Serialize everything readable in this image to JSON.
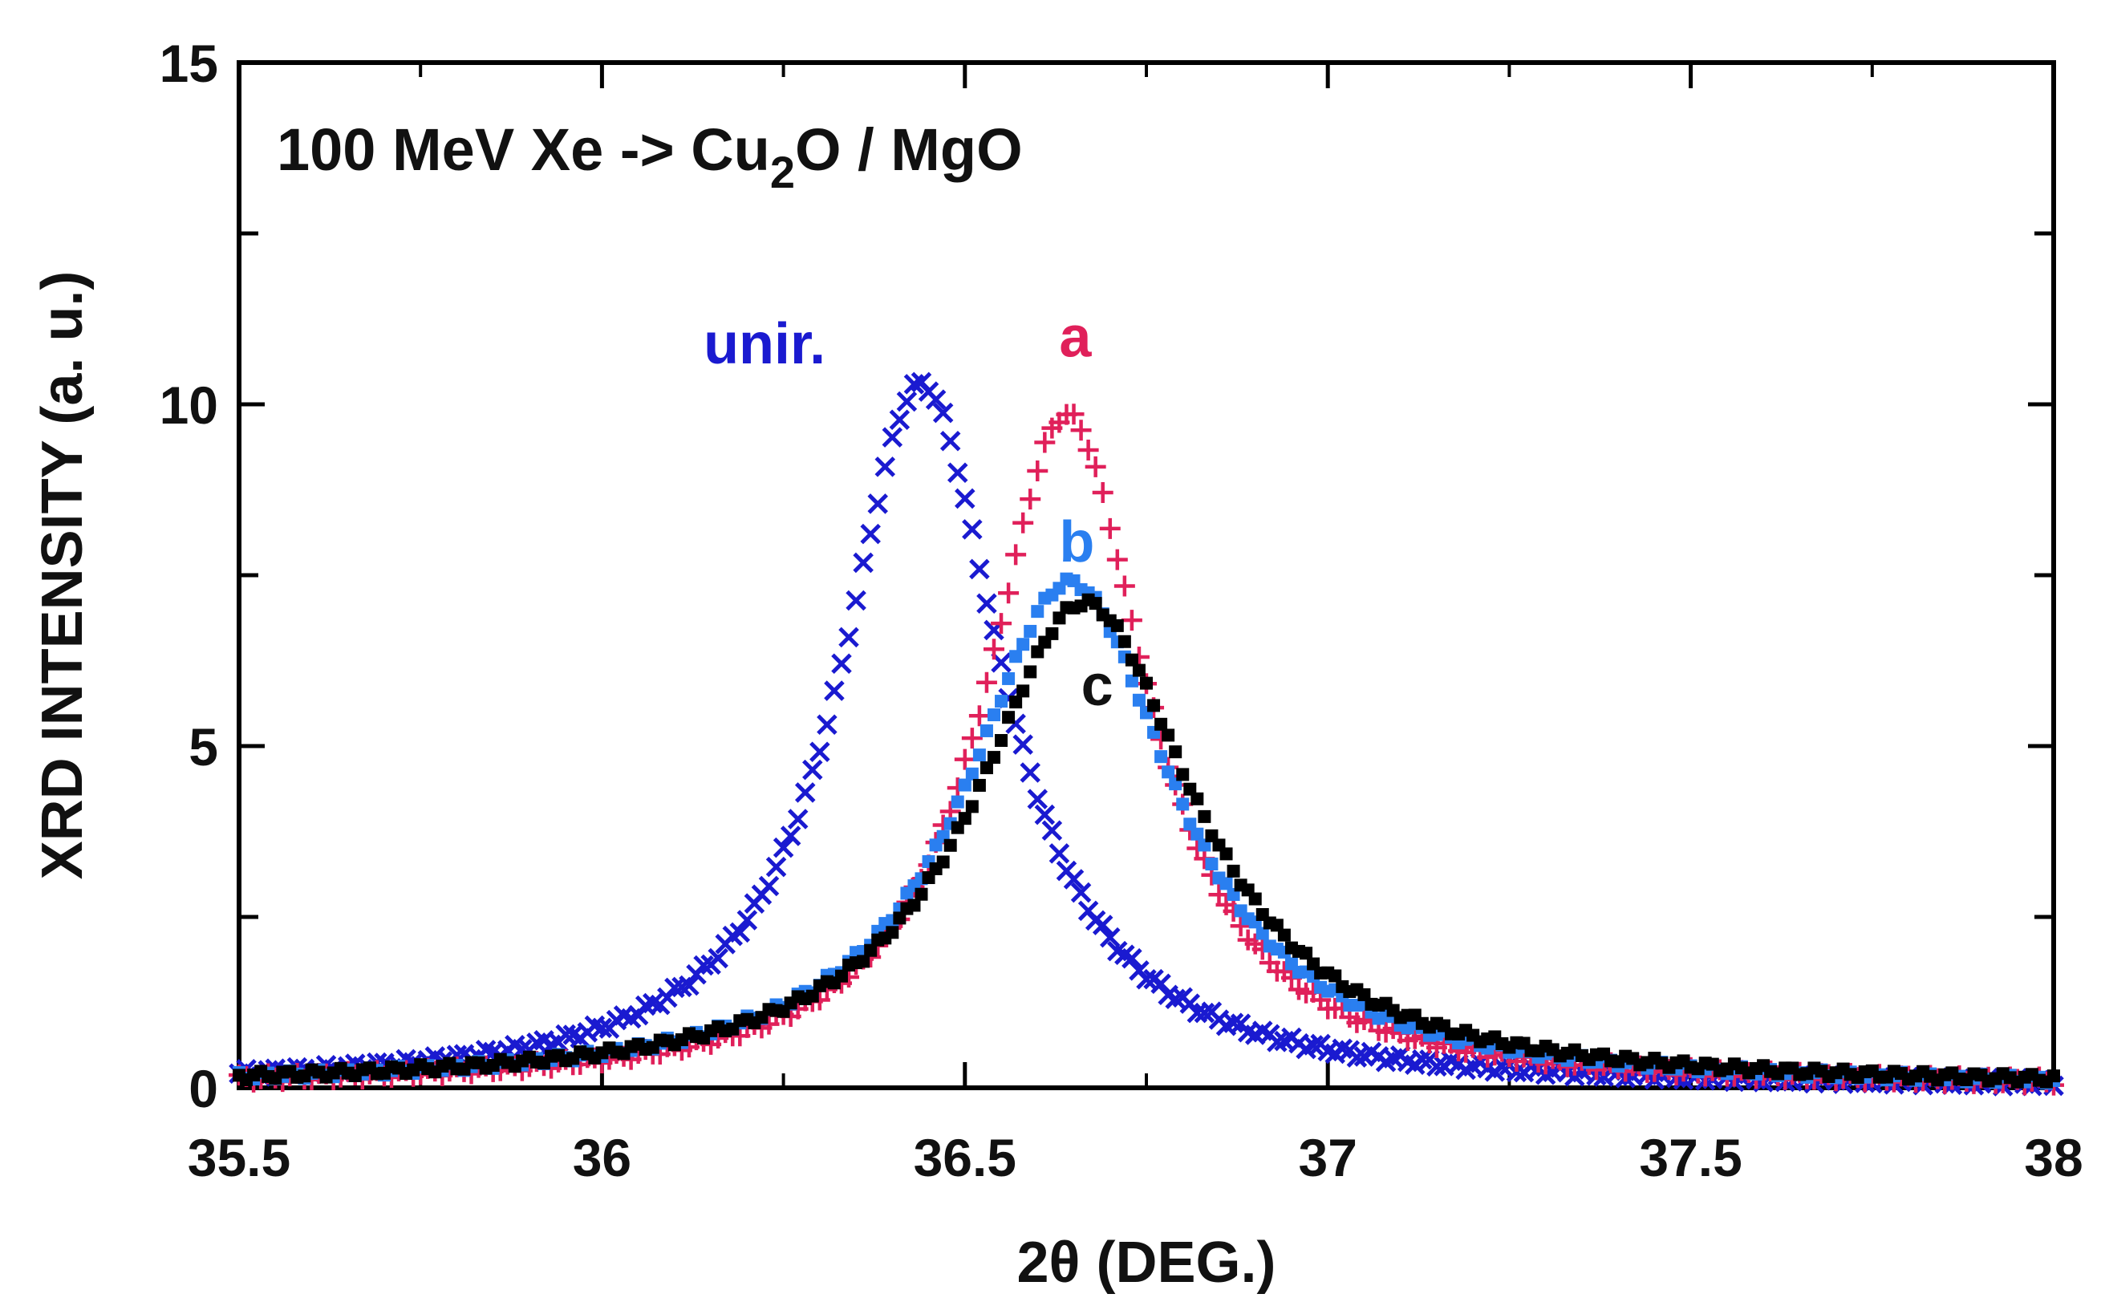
{
  "chart_data": {
    "type": "scatter",
    "title_main": "100 MeV Xe -> Cu",
    "title_sub": "2",
    "title_end": "O / MgO",
    "xlabel": "2θ  (DEG.)",
    "ylabel": "XRD  INTENSITY (a. u.)",
    "xlim": [
      35.5,
      38
    ],
    "ylim": [
      0,
      15
    ],
    "xticks": [
      35.5,
      36,
      36.5,
      37,
      37.5,
      38
    ],
    "xtick_labels": [
      "35.5",
      "36",
      "36.5",
      "37",
      "37.5",
      "38"
    ],
    "yticks": [
      0,
      5,
      10,
      15
    ],
    "ytick_labels": [
      "0",
      "5",
      "10",
      "15"
    ],
    "series": [
      {
        "name": "unir.",
        "color": "#1a1ad0",
        "marker": "x",
        "center": 36.44,
        "hwhm": 0.135,
        "peak": 10.3,
        "step": 0.01
      },
      {
        "name": "a",
        "color": "#e0205a",
        "marker": "+",
        "center": 36.64,
        "hwhm": 0.135,
        "peak": 9.85,
        "step": 0.01
      },
      {
        "name": "b",
        "color": "#2a7ff0",
        "marker": "square",
        "center": 36.645,
        "hwhm": 0.175,
        "peak": 7.4,
        "step": 0.01
      },
      {
        "name": "c",
        "color": "#000000",
        "marker": "square",
        "center": 36.665,
        "hwhm": 0.185,
        "peak": 7.1,
        "step": 0.01
      }
    ],
    "annotations": [
      {
        "text": "unir.",
        "x": 36.14,
        "y": 10.6,
        "color": "#1a1ad0"
      },
      {
        "text": "a",
        "x": 36.63,
        "y": 10.7,
        "color": "#e0205a"
      },
      {
        "text": "b",
        "x": 36.63,
        "y": 7.7,
        "color": "#2a7ff0"
      },
      {
        "text": "c",
        "x": 36.66,
        "y": 5.6,
        "color": "#111111"
      }
    ]
  }
}
